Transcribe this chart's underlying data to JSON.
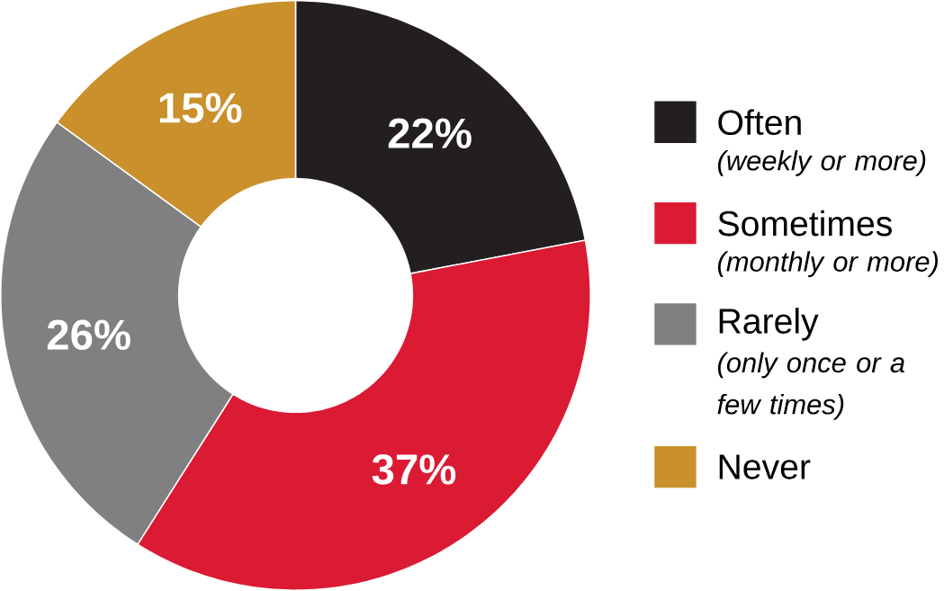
{
  "chart_data": {
    "type": "donut",
    "categories": [
      "Often",
      "Sometimes",
      "Rarely",
      "Never"
    ],
    "values": [
      22,
      37,
      26,
      15
    ],
    "colors": [
      "#231f20",
      "#db1a33",
      "#808080",
      "#c9902b"
    ],
    "value_labels": [
      "22%",
      "37%",
      "26%",
      "15%"
    ],
    "legend": "right",
    "annotations": [
      "(weekly or more)",
      "(monthly or more)",
      "(only once or a few times)"
    ]
  }
}
